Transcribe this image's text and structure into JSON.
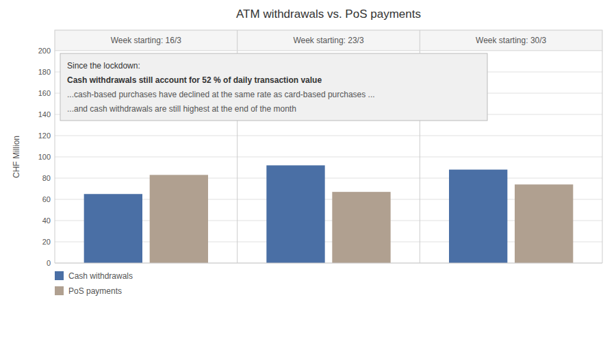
{
  "chart_data": {
    "type": "bar",
    "title": "ATM withdrawals vs. PoS payments",
    "ylabel": "CHF Million",
    "categories": [
      "Week starting: 16/3",
      "Week starting: 23/3",
      "Week starting: 30/3"
    ],
    "series": [
      {
        "name": "Cash withdrawals",
        "color": "#4a6fa5",
        "values": [
          65,
          92,
          88
        ]
      },
      {
        "name": "PoS payments",
        "color": "#b0a090",
        "values": [
          83,
          67,
          74
        ]
      }
    ],
    "ylim": [
      0,
      200
    ],
    "yticks": [
      0,
      20,
      40,
      60,
      80,
      100,
      120,
      140,
      160,
      180,
      200
    ],
    "grid": true,
    "legend": "bottom",
    "annotations": [
      "Since the lockdown:",
      "Cash withdrawals still account for 52 % of daily transaction value",
      "...cash-based purchases have declined at the same rate as card-based purchases ...",
      "...and cash withdrawals are still highest at the end of the month"
    ]
  }
}
